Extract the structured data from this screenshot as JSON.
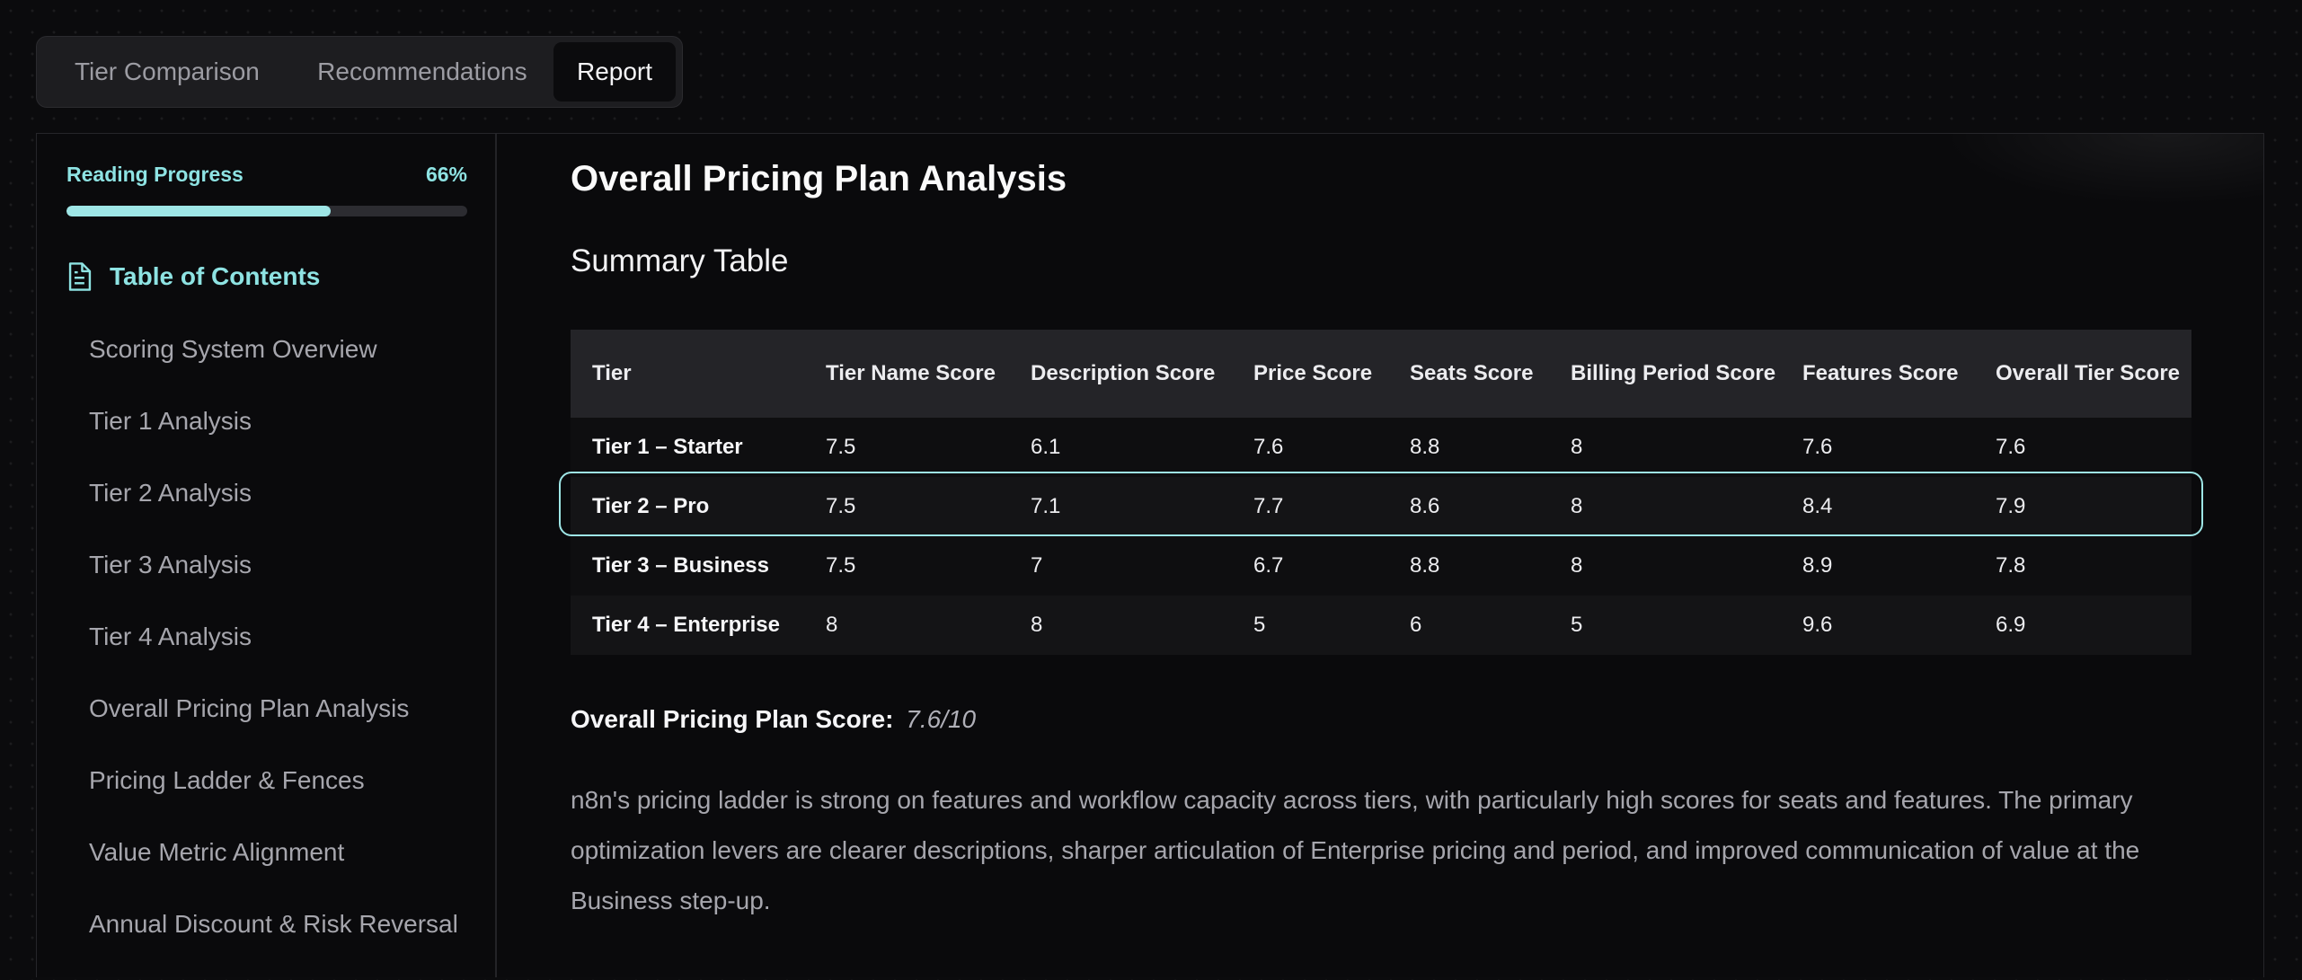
{
  "tabs": [
    {
      "label": "Tier Comparison"
    },
    {
      "label": "Recommendations"
    },
    {
      "label": "Report",
      "active": true
    }
  ],
  "sidebar": {
    "progress_label": "Reading Progress",
    "progress_text": "66%",
    "progress_value": 0.66,
    "toc_icon": "document-icon",
    "toc_title": "Table of Contents",
    "items": [
      {
        "label": "Scoring System Overview"
      },
      {
        "label": "Tier 1 Analysis"
      },
      {
        "label": "Tier 2 Analysis"
      },
      {
        "label": "Tier 3 Analysis"
      },
      {
        "label": "Tier 4 Analysis"
      },
      {
        "label": "Overall Pricing Plan Analysis"
      },
      {
        "label": "Pricing Ladder & Fences"
      },
      {
        "label": "Value Metric Alignment"
      },
      {
        "label": "Annual Discount & Risk Reversal"
      }
    ]
  },
  "main": {
    "title": "Overall Pricing Plan Analysis",
    "subtitle": "Summary Table",
    "table": {
      "headers": [
        "Tier",
        "Tier Name Score",
        "Description Score",
        "Price Score",
        "Seats Score",
        "Billing Period Score",
        "Features Score",
        "Overall Tier Score"
      ],
      "rows": [
        [
          "Tier 1 – Starter",
          "7.5",
          "6.1",
          "7.6",
          "8.8",
          "8",
          "7.6",
          "7.6"
        ],
        [
          "Tier 2 – Pro",
          "7.5",
          "7.1",
          "7.7",
          "8.6",
          "8",
          "8.4",
          "7.9"
        ],
        [
          "Tier 3 – Business",
          "7.5",
          "7",
          "6.7",
          "8.8",
          "8",
          "8.9",
          "7.8"
        ],
        [
          "Tier 4 – Enterprise",
          "8",
          "8",
          "5",
          "6",
          "5",
          "9.6",
          "6.9"
        ]
      ],
      "highlighted_row": 1
    },
    "overall_score_label": "Overall Pricing Plan Score:",
    "overall_score_value": "7.6/10",
    "paragraph": "n8n's pricing ladder is strong on features and workflow capacity across tiers, with particularly high scores for seats and features. The primary optimization levers are clearer descriptions, sharper articulation of Enterprise pricing and period, and improved communication of value at the Business step-up."
  },
  "colors": {
    "accent": "#9ee6e6",
    "background": "#0b0b0d"
  }
}
